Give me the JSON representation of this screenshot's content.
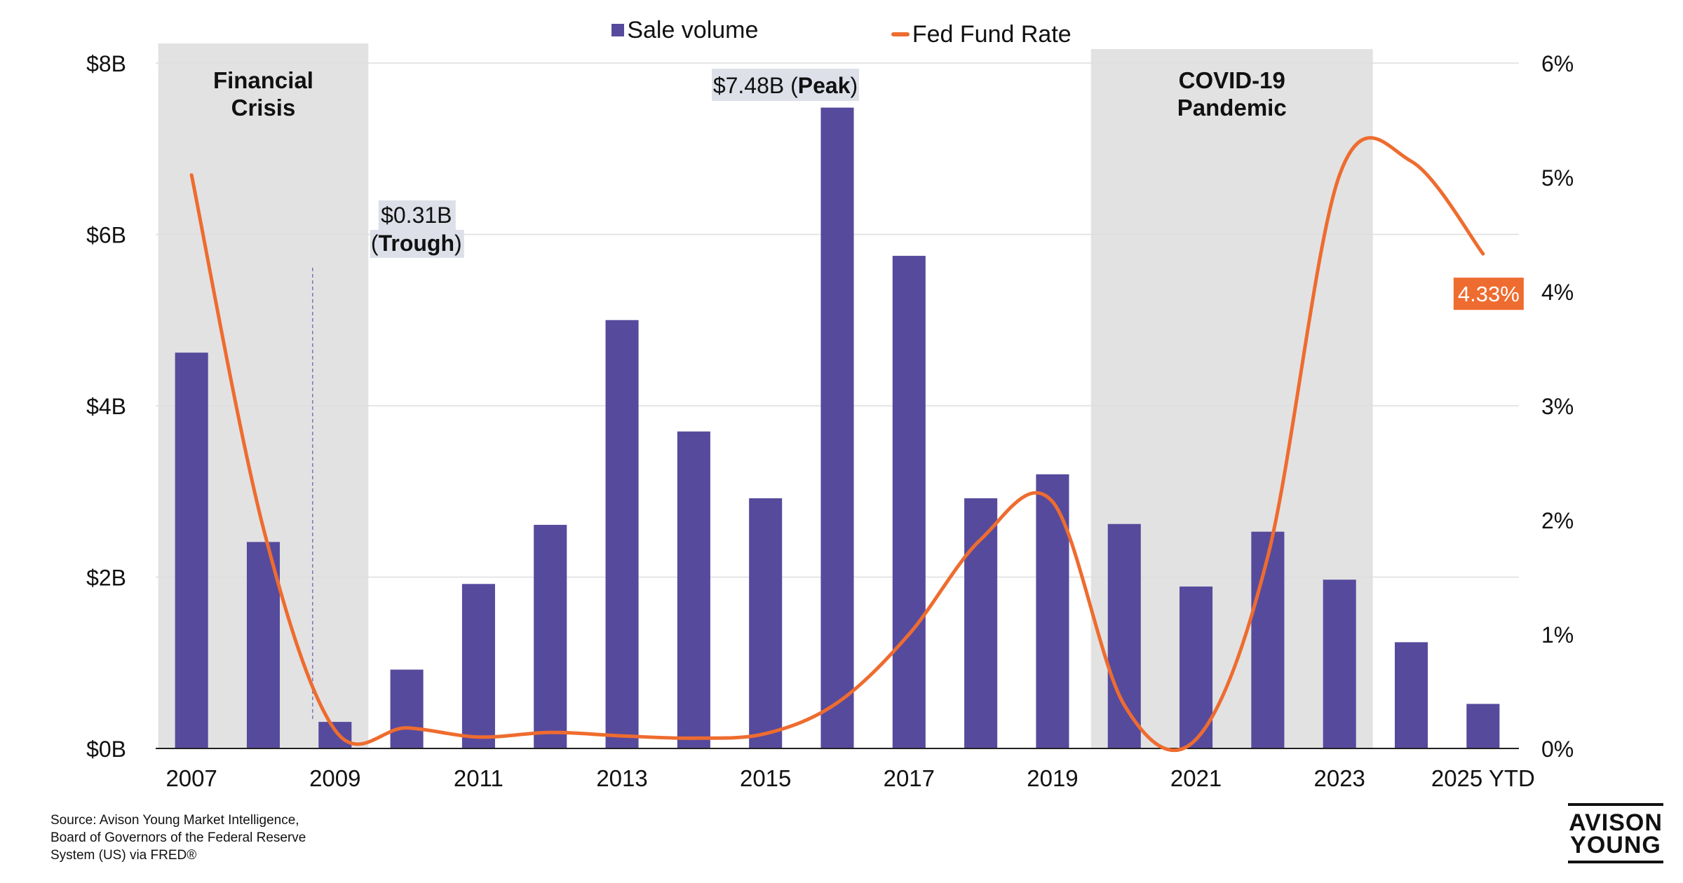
{
  "legend": {
    "bar_label": "Sale volume",
    "line_label": "Fed Fund Rate"
  },
  "colors": {
    "bar": "#564a9d",
    "line": "#ee6c2f",
    "shade": "#e2e2e2",
    "label_box": "#dde0e8"
  },
  "chart_data": {
    "type": "bar",
    "title": "",
    "categories": [
      "2007",
      "2008",
      "2009",
      "2010",
      "2011",
      "2012",
      "2013",
      "2014",
      "2015",
      "2016",
      "2017",
      "2018",
      "2019",
      "2020",
      "2021",
      "2022",
      "2023",
      "2024",
      "2025 YTD"
    ],
    "tick_labels": [
      "2007",
      "2009",
      "2011",
      "2013",
      "2015",
      "2017",
      "2019",
      "2021",
      "2023",
      "2025 YTD"
    ],
    "series": [
      {
        "name": "Sale volume",
        "type": "bar",
        "axis": "left",
        "unit": "billions USD",
        "values": [
          4.62,
          2.41,
          0.31,
          0.92,
          1.92,
          2.61,
          5.0,
          3.7,
          2.92,
          7.48,
          5.75,
          2.92,
          3.2,
          2.62,
          1.89,
          2.53,
          1.97,
          1.24,
          0.52
        ]
      },
      {
        "name": "Fed Fund Rate",
        "type": "line",
        "axis": "right",
        "unit": "percent",
        "values": [
          5.02,
          1.93,
          0.16,
          0.18,
          0.1,
          0.14,
          0.11,
          0.09,
          0.13,
          0.4,
          1.0,
          1.83,
          2.16,
          0.38,
          0.08,
          1.68,
          5.02,
          5.14,
          4.33
        ]
      }
    ],
    "y_left": {
      "min": 0,
      "max": 8,
      "ticks": [
        0,
        2,
        4,
        6,
        8
      ],
      "tick_labels": [
        "$0B",
        "$2B",
        "$4B",
        "$6B",
        "$8B"
      ]
    },
    "y_right": {
      "min": 0,
      "max": 6,
      "ticks": [
        0,
        1,
        2,
        3,
        4,
        5,
        6
      ],
      "tick_labels": [
        "0%",
        "1%",
        "2%",
        "3%",
        "4%",
        "5%",
        "6%"
      ]
    },
    "shaded_periods": [
      {
        "label_lines": [
          "Financial",
          "Crisis"
        ],
        "from_category": "2007",
        "to_category": "2009"
      },
      {
        "label_lines": [
          "COVID-19",
          "Pandemic"
        ],
        "from_category": "2020",
        "to_category": "2023"
      }
    ],
    "annotations": {
      "peak": {
        "category": "2016",
        "value_text": "$7.48B",
        "tag_text": "Peak"
      },
      "trough": {
        "category": "2009",
        "value_text": "$0.31B",
        "tag_text": "Trough"
      },
      "last_rate": {
        "category": "2025 YTD",
        "text": "4.33%"
      }
    },
    "grid": true,
    "legend_position": "top-center"
  },
  "footer": {
    "source_line1": "Source: Avison Young Market Intelligence,",
    "source_line2": "Board of Governors of the Federal Reserve",
    "source_line3": "System (US) via FRED®",
    "logo_line1": "AVISON",
    "logo_line2": "YOUNG"
  }
}
